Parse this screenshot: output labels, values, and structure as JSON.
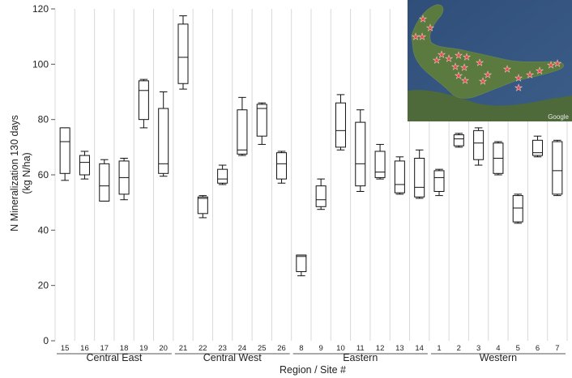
{
  "chart_data": {
    "type": "boxplot",
    "title": "",
    "xlabel": "Region / Site #",
    "ylabel_line1": "N Mineralization 130 days",
    "ylabel_line2": "(kg N/ha)",
    "ylim": [
      0,
      120
    ],
    "yticks": [
      "0",
      "20",
      "40",
      "60",
      "80",
      "100",
      "120"
    ],
    "grid": "vertical separators between sites",
    "inset": "satellite map of the island with red star markers (Google)",
    "inset_watermark": "Google",
    "regions": [
      {
        "name": "Central East",
        "sites": [
          {
            "site": "15",
            "min": 58,
            "q1": 60.5,
            "median": 72,
            "q3": 77,
            "max": 77
          },
          {
            "site": "16",
            "min": 58.5,
            "q1": 60,
            "median": 64.5,
            "q3": 67,
            "max": 68.5
          },
          {
            "site": "17",
            "min": 50.5,
            "q1": 50.5,
            "median": 56,
            "q3": 64,
            "max": 65.5
          },
          {
            "site": "18",
            "min": 51,
            "q1": 53,
            "median": 59,
            "q3": 65,
            "max": 66
          },
          {
            "site": "19",
            "min": 77,
            "q1": 80,
            "median": 90.5,
            "q3": 94,
            "max": 94.5
          },
          {
            "site": "20",
            "min": 59.5,
            "q1": 60.5,
            "median": 64,
            "q3": 84,
            "max": 90
          }
        ]
      },
      {
        "name": "Central West",
        "sites": [
          {
            "site": "21",
            "min": 91,
            "q1": 93,
            "median": 102.5,
            "q3": 114.5,
            "max": 117.5
          },
          {
            "site": "22",
            "min": 44.5,
            "q1": 46,
            "median": 51.5,
            "q3": 52,
            "max": 52.5
          },
          {
            "site": "23",
            "min": 56.5,
            "q1": 57,
            "median": 58.5,
            "q3": 62,
            "max": 63.5
          },
          {
            "site": "24",
            "min": 67,
            "q1": 67.5,
            "median": 69,
            "q3": 83.5,
            "max": 88
          },
          {
            "site": "25",
            "min": 71,
            "q1": 74,
            "median": 84,
            "q3": 85.5,
            "max": 86
          },
          {
            "site": "26",
            "min": 57,
            "q1": 58.5,
            "median": 64,
            "q3": 68,
            "max": 68.5
          }
        ]
      },
      {
        "name": "Eastern",
        "sites": [
          {
            "site": "8",
            "min": 23.5,
            "q1": 25,
            "median": 30.5,
            "q3": 31,
            "max": 31
          },
          {
            "site": "9",
            "min": 47.5,
            "q1": 48.5,
            "median": 51,
            "q3": 56,
            "max": 58.5
          },
          {
            "site": "10",
            "min": 69,
            "q1": 70,
            "median": 76,
            "q3": 86,
            "max": 89
          },
          {
            "site": "11",
            "min": 54,
            "q1": 56,
            "median": 64,
            "q3": 79,
            "max": 83.5
          },
          {
            "site": "12",
            "min": 58.5,
            "q1": 59,
            "median": 61,
            "q3": 68.5,
            "max": 71
          },
          {
            "site": "13",
            "min": 53,
            "q1": 53.5,
            "median": 56.5,
            "q3": 65,
            "max": 66.5
          },
          {
            "site": "14",
            "min": 51.5,
            "q1": 52,
            "median": 55.5,
            "q3": 66,
            "max": 69
          }
        ]
      },
      {
        "name": "Western",
        "sites": [
          {
            "site": "1",
            "min": 52.5,
            "q1": 54,
            "median": 59,
            "q3": 61.5,
            "max": 62
          },
          {
            "site": "2",
            "min": 70,
            "q1": 70.5,
            "median": 73,
            "q3": 74.5,
            "max": 75
          },
          {
            "site": "3",
            "min": 63.5,
            "q1": 65.5,
            "median": 71.5,
            "q3": 76,
            "max": 77
          },
          {
            "site": "4",
            "min": 60,
            "q1": 60.5,
            "median": 66,
            "q3": 71.5,
            "max": 72
          },
          {
            "site": "5",
            "min": 42.5,
            "q1": 43,
            "median": 48,
            "q3": 52.5,
            "max": 53
          },
          {
            "site": "6",
            "min": 66.5,
            "q1": 67,
            "median": 68,
            "q3": 72.5,
            "max": 74
          },
          {
            "site": "7",
            "min": 52.5,
            "q1": 53,
            "median": 61.5,
            "q3": 72,
            "max": 72.5
          }
        ]
      }
    ]
  }
}
